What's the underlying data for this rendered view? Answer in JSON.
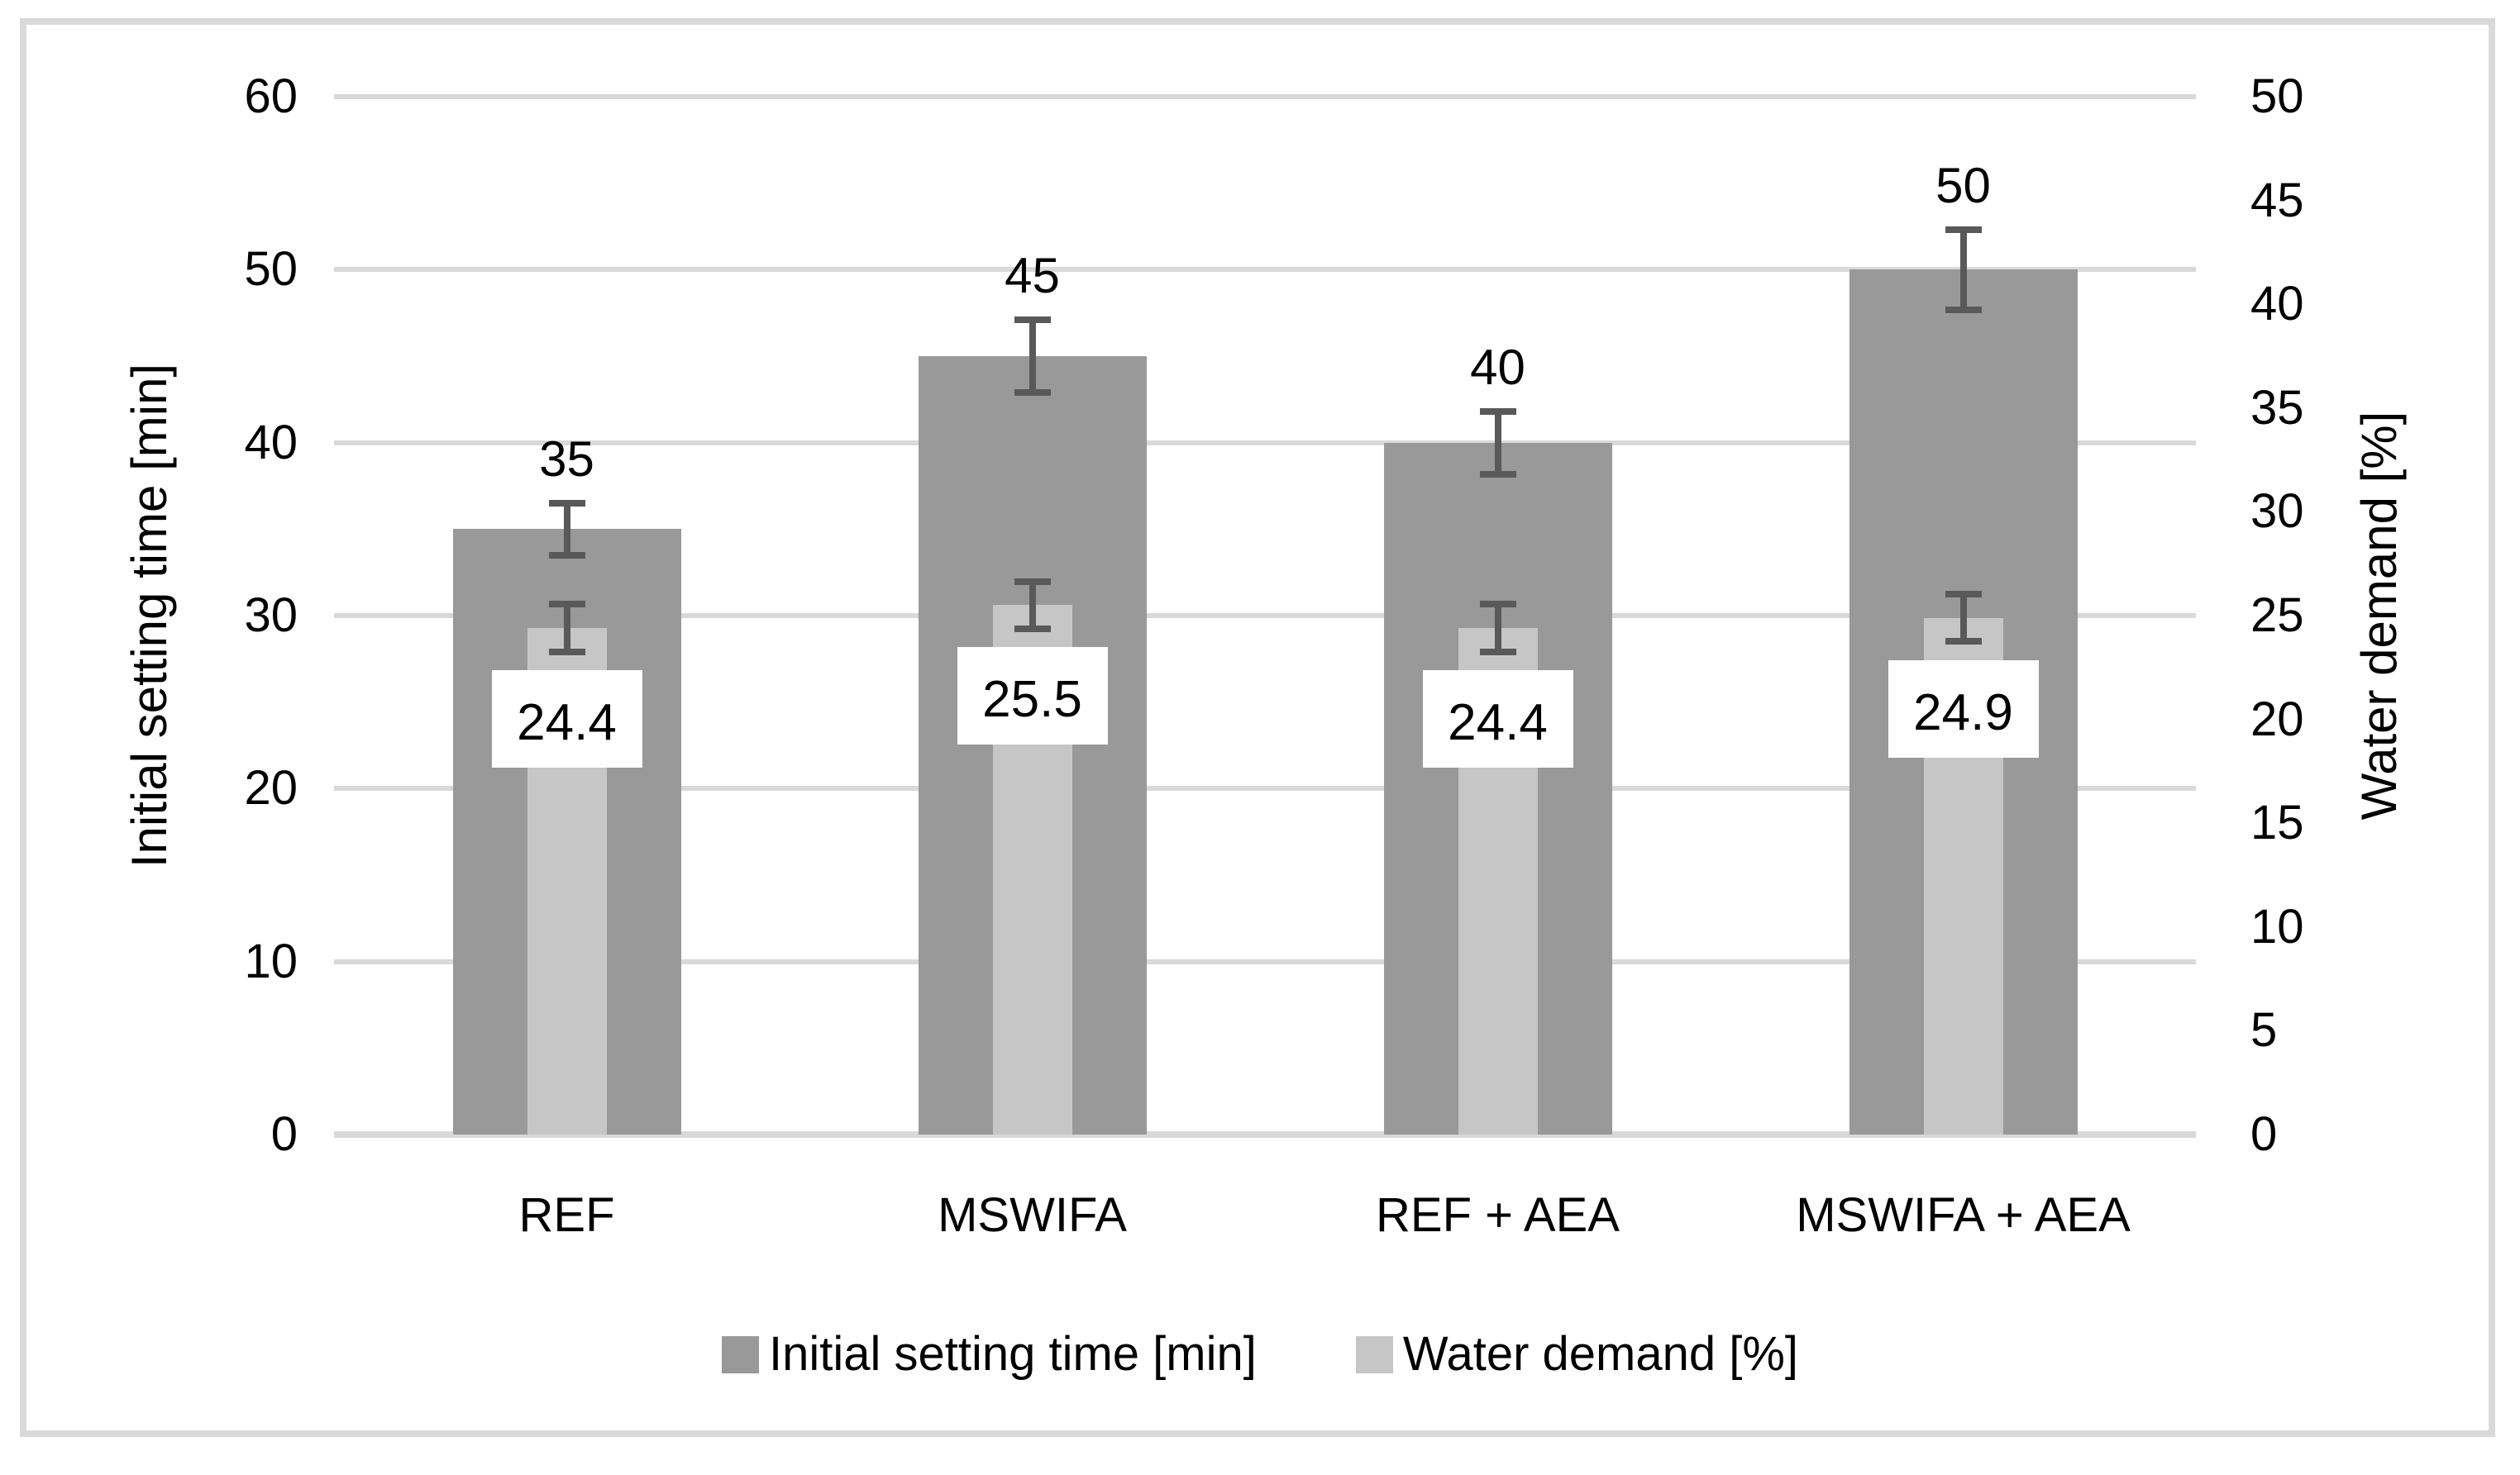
{
  "chart_data": {
    "type": "bar",
    "categories": [
      "REF",
      "MSWIFA",
      "REF + AEA",
      "MSWIFA + AEA"
    ],
    "series": [
      {
        "name": "Initial setting time [min]",
        "axis": "left",
        "values": [
          35,
          45,
          40,
          50
        ],
        "value_labels": [
          "35",
          "45",
          "40",
          "50"
        ],
        "errors": [
          1.7,
          2.3,
          2.0,
          2.5
        ],
        "color": "#999999"
      },
      {
        "name": "Water demand [%]",
        "axis": "right",
        "values": [
          24.4,
          25.5,
          24.4,
          24.9
        ],
        "value_labels": [
          "24.4",
          "25.5",
          "24.4",
          "24.9"
        ],
        "errors": [
          1.3,
          1.3,
          1.3,
          1.3
        ],
        "color": "#C6C6C6"
      }
    ],
    "left_axis": {
      "title": "Initial setting time [min]",
      "min": 0,
      "max": 60,
      "step": 10,
      "tick_labels": [
        "0",
        "10",
        "20",
        "30",
        "40",
        "50",
        "60"
      ]
    },
    "right_axis": {
      "title": "Water demand [%]",
      "min": 0,
      "max": 50,
      "step": 5,
      "tick_labels": [
        "0",
        "5",
        "10",
        "15",
        "20",
        "25",
        "30",
        "35",
        "40",
        "45",
        "50"
      ]
    },
    "grid": true,
    "legend_position": "bottom",
    "colors": {
      "gridline": "#D9D9D9",
      "axis_line": "#D9D9D9",
      "frame_border": "#D9D9D9",
      "error_bar": "#595959",
      "label_box_bg": "#FFFFFF",
      "text": "#000000"
    }
  }
}
